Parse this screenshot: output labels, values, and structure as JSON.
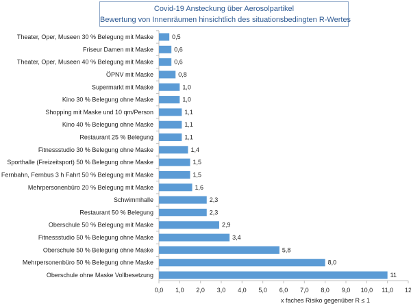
{
  "chart_data": {
    "type": "bar",
    "orientation": "horizontal",
    "title": "Covid-19 Ansteckung über Aerosolpartikel",
    "subtitle": "Bewertung von Innenräumen hinsichtlich des situationsbedingten R-Wertes",
    "xlabel": "x faches Risiko gegenüber R ≤ 1",
    "ylabel": "",
    "xlim": [
      0,
      12
    ],
    "grid": false,
    "legend": "none",
    "bar_color": "#5b9bd5",
    "categories": [
      "Theater, Oper, Museen 30 % Belegung mit Maske",
      "Friseur Damen mit Maske",
      "Theater, Oper, Museen 40 % Belegung mit Maske",
      "ÖPNV mit Maske",
      "Supermarkt mit Maske",
      "Kino 30 % Belegung ohne Maske",
      "Shopping mit Maske und 10 qm/Person",
      "Kino 40 % Belegung ohne Maske",
      "Restaurant 25 % Belegung",
      "Fitnessstudio 30 % Belegung ohne Maske",
      "Sporthalle  (Freizeitsport) 50 % Belegung ohne Maske",
      "Fernbahn, Fernbus 3 h Fahrt 50 % Belegung mit Maske",
      "Mehrpersonenbüro 20 % Belegung mit Maske",
      "Schwimmhalle",
      "Restaurant 50 % Belegung",
      "Oberschule 50 % Belegung mit Maske",
      "Fitnessstudio 50 % Belegung ohne Maske",
      "Oberschule 50 % Belegung ohne Maske",
      "Mehrpersonenbüro 50 % Belegung ohne Maske",
      "Oberschule ohne Maske Vollbesetzung"
    ],
    "values": [
      0.5,
      0.6,
      0.6,
      0.8,
      1.0,
      1.0,
      1.1,
      1.1,
      1.1,
      1.4,
      1.5,
      1.5,
      1.6,
      2.3,
      2.3,
      2.9,
      3.4,
      5.8,
      8.0,
      11
    ],
    "value_labels": [
      "0,5",
      "0,6",
      "0,6",
      "0,8",
      "1,0",
      "1,0",
      "1,1",
      "1,1",
      "1,1",
      "1,4",
      "1,5",
      "1,5",
      "1,6",
      "2,3",
      "2,3",
      "2,9",
      "3,4",
      "5,8",
      "8,0",
      "11"
    ],
    "ticks": [
      0,
      1,
      2,
      3,
      4,
      5,
      6,
      7,
      8,
      9,
      10,
      11,
      12
    ],
    "tick_labels": [
      "0,0",
      "1,0",
      "2,0",
      "3,0",
      "4,0",
      "5,0",
      "6,0",
      "7,0",
      "8,0",
      "9,0",
      "10,0",
      "11,0",
      "12"
    ]
  }
}
